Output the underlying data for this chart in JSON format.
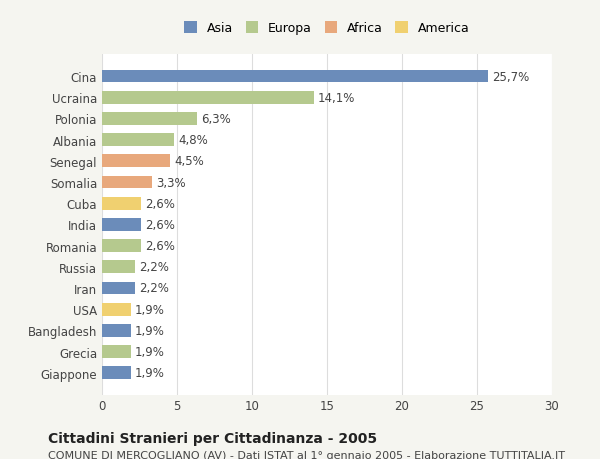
{
  "countries": [
    "Cina",
    "Ucraina",
    "Polonia",
    "Albania",
    "Senegal",
    "Somalia",
    "Cuba",
    "India",
    "Romania",
    "Russia",
    "Iran",
    "USA",
    "Bangladesh",
    "Grecia",
    "Giappone"
  ],
  "values": [
    25.7,
    14.1,
    6.3,
    4.8,
    4.5,
    3.3,
    2.6,
    2.6,
    2.6,
    2.2,
    2.2,
    1.9,
    1.9,
    1.9,
    1.9
  ],
  "labels": [
    "25,7%",
    "14,1%",
    "6,3%",
    "4,8%",
    "4,5%",
    "3,3%",
    "2,6%",
    "2,6%",
    "2,6%",
    "2,2%",
    "2,2%",
    "1,9%",
    "1,9%",
    "1,9%",
    "1,9%"
  ],
  "colors": [
    "#6b8cba",
    "#b5c98e",
    "#b5c98e",
    "#b5c98e",
    "#e8a87c",
    "#e8a87c",
    "#f0d070",
    "#6b8cba",
    "#b5c98e",
    "#b5c98e",
    "#6b8cba",
    "#f0d070",
    "#6b8cba",
    "#b5c98e",
    "#6b8cba"
  ],
  "legend_labels": [
    "Asia",
    "Europa",
    "Africa",
    "America"
  ],
  "legend_colors": [
    "#6b8cba",
    "#b5c98e",
    "#e8a87c",
    "#f0d070"
  ],
  "xlim": [
    0,
    30
  ],
  "xticks": [
    0,
    5,
    10,
    15,
    20,
    25,
    30
  ],
  "title": "Cittadini Stranieri per Cittadinanza - 2005",
  "subtitle": "COMUNE DI MERCOGLIANO (AV) - Dati ISTAT al 1° gennaio 2005 - Elaborazione TUTTITALIA.IT",
  "bg_color": "#f5f5f0",
  "bar_bg_color": "#ffffff",
  "grid_color": "#dddddd",
  "label_fontsize": 8.5,
  "tick_fontsize": 8.5,
  "title_fontsize": 10,
  "subtitle_fontsize": 8
}
